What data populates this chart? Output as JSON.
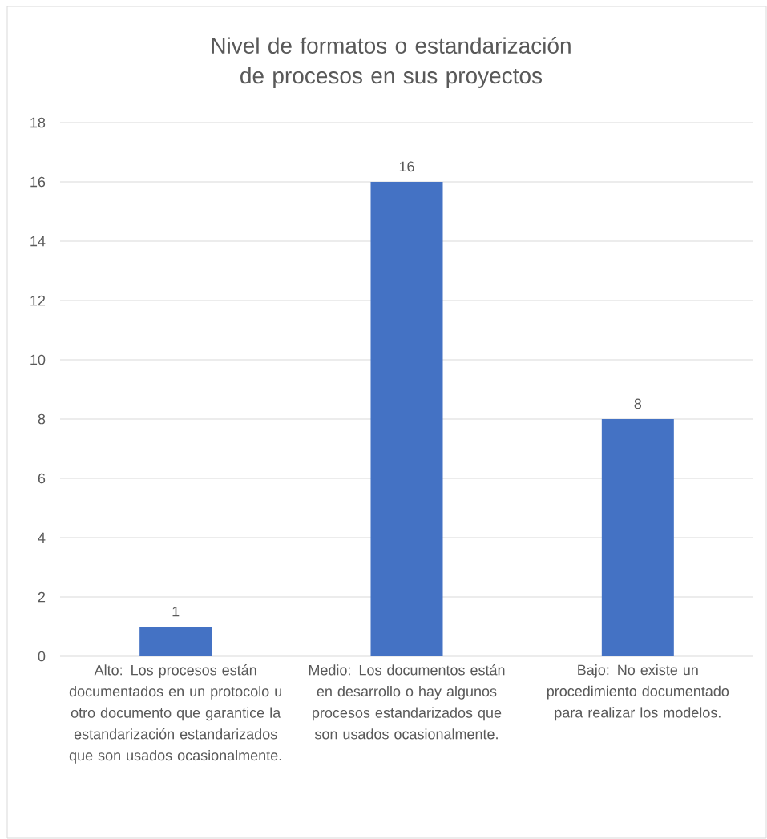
{
  "chart_data": {
    "type": "bar",
    "title": "Nivel de formatos o estandarización de procesos en sus proyectos",
    "categories": [
      "Alto: Los procesos están documentados en un protocolo u otro documento que garantice la estandarización estandarizados que son usados ocasionalmente.",
      "Medio: Los documentos están en desarrollo o hay algunos procesos estandarizados que son usados ocasionalmente.",
      "Bajo: No existe un procedimiento documentado para realizar los modelos."
    ],
    "values": [
      1,
      16,
      8
    ],
    "color": "#4472c4",
    "ylim": [
      0,
      18
    ],
    "yticks": [
      0,
      2,
      4,
      6,
      8,
      10,
      12,
      14,
      16,
      18
    ],
    "grid": "y",
    "data_labels": true
  }
}
